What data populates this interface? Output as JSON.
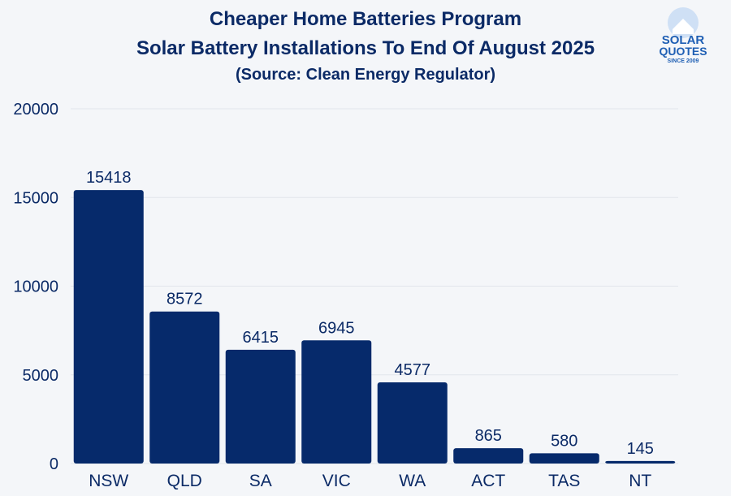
{
  "title": "Cheaper Home Batteries Program",
  "subtitle": "Solar Battery Installations To End Of August 2025",
  "source": "(Source: Clean Energy Regulator)",
  "logo": {
    "line1": "SOLAR",
    "line2": "QUOTES",
    "line3": "SINCE 2009"
  },
  "colors": {
    "bar": "#062a6b",
    "text": "#0b2a66",
    "grid": "#e2e6ec",
    "background": "#f4f6f9"
  },
  "chart_data": {
    "type": "bar",
    "categories": [
      "NSW",
      "QLD",
      "SA",
      "VIC",
      "WA",
      "ACT",
      "TAS",
      "NT"
    ],
    "values": [
      15418,
      8572,
      6415,
      6945,
      4577,
      865,
      580,
      145
    ],
    "ylim": [
      0,
      20000
    ],
    "yticks": [
      0,
      5000,
      10000,
      15000,
      20000
    ],
    "grid": true,
    "data_labels": true,
    "xlabel": "",
    "ylabel": ""
  }
}
